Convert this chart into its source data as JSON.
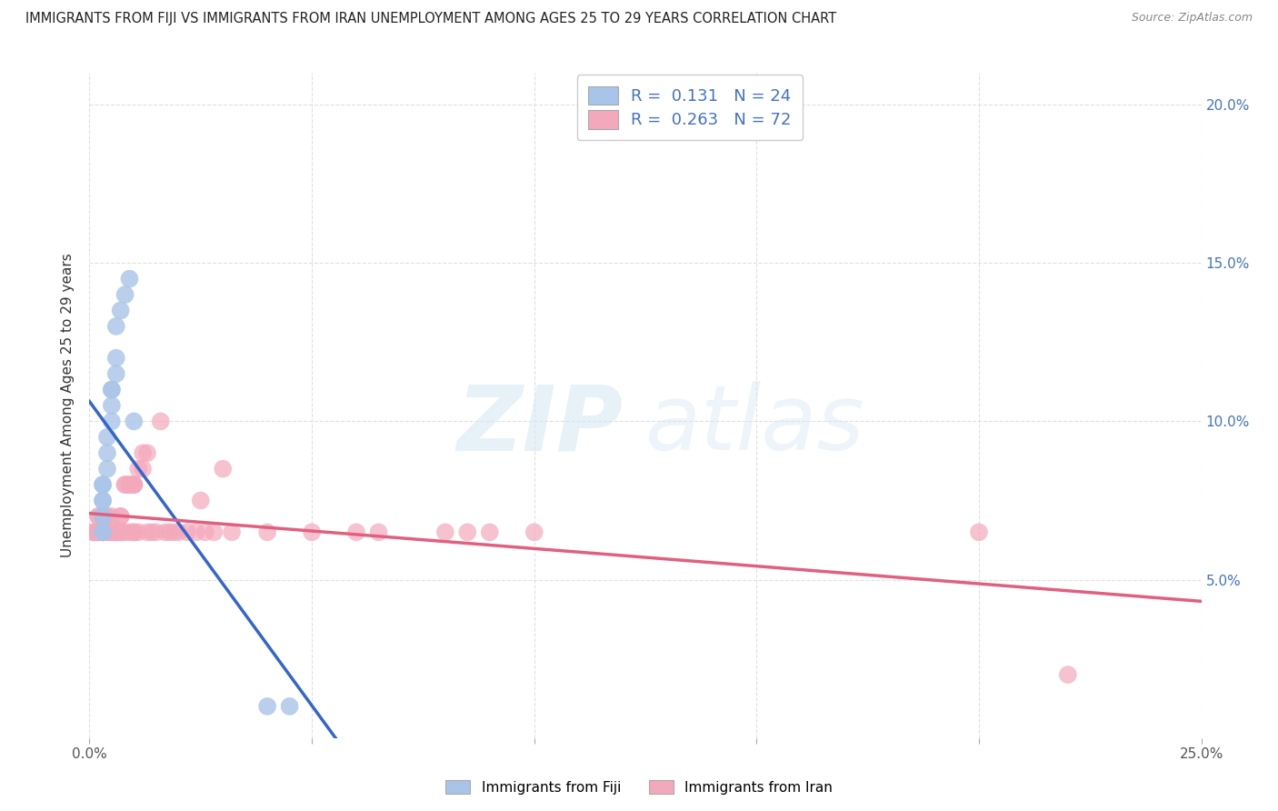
{
  "title": "IMMIGRANTS FROM FIJI VS IMMIGRANTS FROM IRAN UNEMPLOYMENT AMONG AGES 25 TO 29 YEARS CORRELATION CHART",
  "source": "Source: ZipAtlas.com",
  "ylabel": "Unemployment Among Ages 25 to 29 years",
  "xlim": [
    0.0,
    0.25
  ],
  "ylim": [
    0.0,
    0.21
  ],
  "fiji_color": "#a8c4e8",
  "iran_color": "#f4a8bc",
  "fiji_line_color": "#3366cc",
  "iran_line_color": "#e06080",
  "R_fiji": 0.131,
  "N_fiji": 24,
  "R_iran": 0.263,
  "N_iran": 72,
  "fiji_x": [
    0.003,
    0.003,
    0.003,
    0.003,
    0.003,
    0.003,
    0.003,
    0.003,
    0.004,
    0.004,
    0.004,
    0.005,
    0.005,
    0.005,
    0.005,
    0.006,
    0.006,
    0.006,
    0.007,
    0.008,
    0.009,
    0.01,
    0.04,
    0.045
  ],
  "fiji_y": [
    0.065,
    0.065,
    0.07,
    0.07,
    0.075,
    0.075,
    0.08,
    0.08,
    0.085,
    0.09,
    0.095,
    0.1,
    0.105,
    0.11,
    0.11,
    0.115,
    0.12,
    0.13,
    0.135,
    0.14,
    0.145,
    0.1,
    0.01,
    0.01
  ],
  "iran_x": [
    0.001,
    0.001,
    0.001,
    0.002,
    0.002,
    0.002,
    0.002,
    0.002,
    0.002,
    0.002,
    0.003,
    0.003,
    0.003,
    0.003,
    0.004,
    0.004,
    0.004,
    0.004,
    0.004,
    0.005,
    0.005,
    0.005,
    0.005,
    0.006,
    0.006,
    0.006,
    0.007,
    0.007,
    0.007,
    0.007,
    0.007,
    0.008,
    0.008,
    0.008,
    0.009,
    0.009,
    0.009,
    0.01,
    0.01,
    0.01,
    0.01,
    0.01,
    0.011,
    0.011,
    0.012,
    0.012,
    0.013,
    0.013,
    0.014,
    0.015,
    0.016,
    0.017,
    0.018,
    0.019,
    0.02,
    0.022,
    0.024,
    0.025,
    0.026,
    0.028,
    0.03,
    0.032,
    0.04,
    0.05,
    0.06,
    0.065,
    0.08,
    0.085,
    0.09,
    0.1,
    0.2,
    0.22
  ],
  "iran_y": [
    0.065,
    0.065,
    0.065,
    0.065,
    0.065,
    0.065,
    0.07,
    0.07,
    0.065,
    0.065,
    0.065,
    0.065,
    0.065,
    0.065,
    0.065,
    0.065,
    0.07,
    0.07,
    0.065,
    0.065,
    0.065,
    0.07,
    0.065,
    0.065,
    0.065,
    0.065,
    0.065,
    0.07,
    0.07,
    0.065,
    0.065,
    0.08,
    0.08,
    0.065,
    0.08,
    0.08,
    0.065,
    0.08,
    0.08,
    0.08,
    0.065,
    0.065,
    0.085,
    0.065,
    0.09,
    0.085,
    0.09,
    0.065,
    0.065,
    0.065,
    0.1,
    0.065,
    0.065,
    0.065,
    0.065,
    0.065,
    0.065,
    0.075,
    0.065,
    0.065,
    0.085,
    0.065,
    0.065,
    0.065,
    0.065,
    0.065,
    0.065,
    0.065,
    0.065,
    0.065,
    0.065,
    0.02
  ],
  "watermark_zip": "ZIP",
  "watermark_atlas": "atlas",
  "background_color": "#ffffff",
  "grid_color": "#e0e0e0"
}
